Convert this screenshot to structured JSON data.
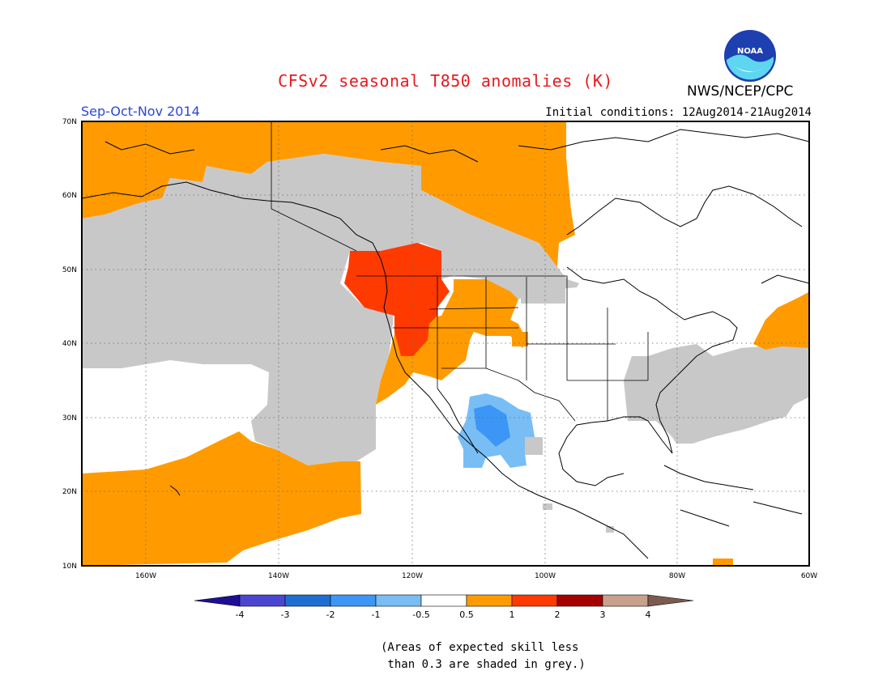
{
  "header": {
    "title": "CFSv2 seasonal T850 anomalies (K)",
    "season": "Sep-Oct-Nov 2014",
    "initial_conditions": "Initial conditions: 12Aug2014-21Aug2014",
    "agency": "NWS/NCEP/CPC",
    "logo_text": "NOAA"
  },
  "map": {
    "lat_labels": [
      "70N",
      "60N",
      "50N",
      "40N",
      "30N",
      "20N",
      "10N"
    ],
    "lon_labels": [
      "160W",
      "140W",
      "120W",
      "100W",
      "80W",
      "60W"
    ]
  },
  "legend": {
    "labels": [
      "-4",
      "-3",
      "-2",
      "-1",
      "-0.5",
      "0.5",
      "1",
      "2",
      "3",
      "4"
    ],
    "colors": [
      "#1e0e96",
      "#4b46d2",
      "#1e6ed2",
      "#3c96f5",
      "#78bef5",
      "#ffffff",
      "#ff9b00",
      "#ff3a00",
      "#a50000",
      "#c8a08c",
      "#7d5a50"
    ]
  },
  "footnote": {
    "line1": "(Areas of expected skill less",
    "line2": " than 0.3 are shaded in grey.)"
  },
  "colors": {
    "grey": "#c8c8c8",
    "orange": "#ff9b00",
    "red": "#ff3a00",
    "blue": "#78bef5",
    "blue2": "#3c96f5"
  }
}
